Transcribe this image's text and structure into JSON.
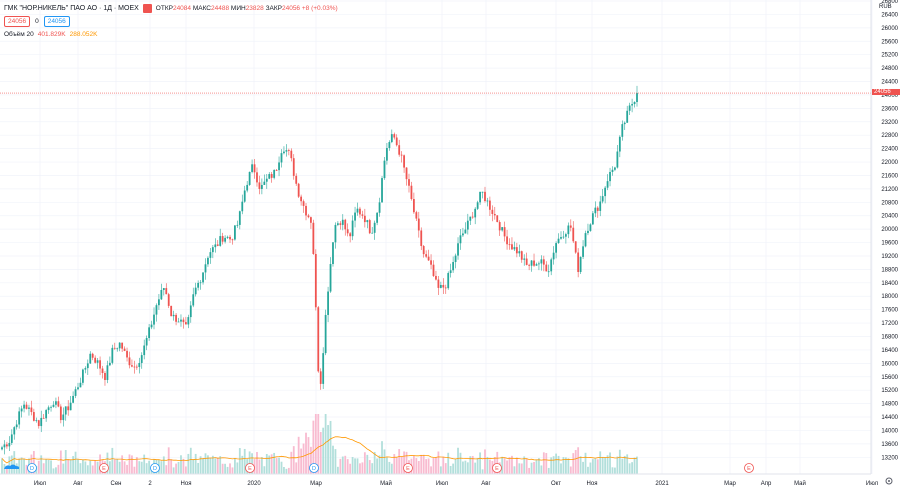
{
  "header": {
    "symbol": "ГМК \"НОР.НИКЕЛЬ\" ПАО АО · 1Д · MOEX",
    "open_label": "ОТКР",
    "open": "24084",
    "high_label": "МАКС",
    "high": "24488",
    "low_label": "МИН",
    "low": "23828",
    "close_label": "ЗАКР",
    "close": "24056",
    "change": "+8 (+0.03%)",
    "bid": "24056",
    "spread": "0",
    "ask": "24056",
    "volume_label": "Объём 20",
    "volume": "401.829K",
    "volume_ma": "288.052K"
  },
  "currency": "RUB",
  "current_price_label": "24056",
  "colors": {
    "up": "#26a69a",
    "down": "#ef5350",
    "vol_up": "#b2dfdb",
    "vol_down": "#f8bbd0",
    "ma": "#ff9800",
    "grid": "#f0f3fa"
  },
  "chart_data": {
    "type": "candlestick",
    "y_ticks": [
      "26800",
      "26400",
      "26000",
      "25600",
      "25200",
      "24800",
      "24400",
      "24000",
      "23600",
      "23200",
      "22800",
      "22400",
      "22000",
      "21600",
      "21200",
      "20800",
      "20400",
      "20000",
      "19600",
      "19200",
      "18800",
      "18400",
      "18000",
      "17600",
      "17200",
      "16800",
      "16400",
      "16000",
      "15600",
      "15200",
      "14800",
      "14400",
      "14000",
      "13600",
      "13200"
    ],
    "ylim": [
      13000,
      26800
    ],
    "x_ticks": [
      "Июл",
      "Авг",
      "Сен",
      "2",
      "Ноя",
      "2020",
      "Мар",
      "Май",
      "Июл",
      "Авг",
      "Окт",
      "Ноя",
      "2021",
      "Мар",
      "Апр",
      "Май",
      "Июл"
    ],
    "current_price": 24056,
    "price_path": [
      13500,
      13700,
      14300,
      14800,
      14500,
      14200,
      14600,
      14900,
      14400,
      14700,
      15200,
      15700,
      16300,
      16000,
      15600,
      16400,
      16600,
      16100,
      15900,
      16300,
      17000,
      17800,
      18300,
      17400,
      17300,
      17000,
      18100,
      18600,
      19300,
      19500,
      19800,
      19700,
      20200,
      21300,
      21900,
      21200,
      21500,
      21700,
      22500,
      22200,
      21200,
      20600,
      20200,
      15000,
      17900,
      20100,
      20300,
      19700,
      20600,
      20400,
      19900,
      20700,
      22400,
      22800,
      22200,
      21300,
      20300,
      19300,
      18900,
      18200,
      18300,
      18900,
      19700,
      20100,
      20600,
      21100,
      20700,
      20300,
      19800,
      19500,
      19300,
      18900,
      19000,
      19000,
      18800,
      19600,
      19900,
      20100,
      18800,
      19900,
      20400,
      20800,
      21500,
      21900,
      23000,
      23600,
      24056
    ],
    "events": [
      {
        "label": "D",
        "type": "dividend"
      },
      {
        "label": "E",
        "type": "earnings"
      },
      {
        "label": "D",
        "type": "dividend"
      },
      {
        "label": "E",
        "type": "earnings"
      },
      {
        "label": "D",
        "type": "dividend"
      },
      {
        "label": "E",
        "type": "earnings"
      },
      {
        "label": "E",
        "type": "earnings"
      },
      {
        "label": "E",
        "type": "earnings"
      }
    ]
  }
}
